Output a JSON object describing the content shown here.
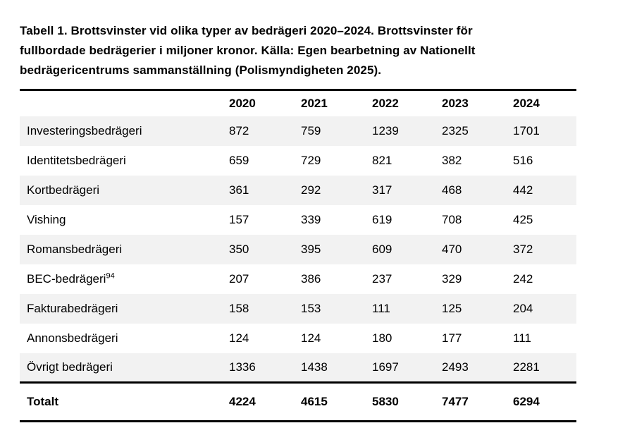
{
  "page": {
    "background_color": "#ffffff",
    "text_color": "#000000",
    "stripe_color": "#f2f2f2",
    "rule_color": "#000000"
  },
  "caption": {
    "lines": [
      "Tabell 1. Brottsvinster vid olika typer av bedrägeri 2020–2024. Brottsvinster för",
      "fullbordade bedrägerier i miljoner kronor. Källa: Egen bearbetning av Nationellt",
      "bedrägericentrums sammanställning (Polismyndigheten 2025)."
    ]
  },
  "table": {
    "year_columns": [
      "2020",
      "2021",
      "2022",
      "2023",
      "2024"
    ],
    "rows": [
      {
        "label": "Investeringsbedrägeri",
        "values": [
          872,
          759,
          1239,
          2325,
          1701
        ]
      },
      {
        "label": "Identitetsbedrägeri",
        "values": [
          659,
          729,
          821,
          382,
          516
        ]
      },
      {
        "label": "Kortbedrägeri",
        "values": [
          361,
          292,
          317,
          468,
          442
        ]
      },
      {
        "label": "Vishing",
        "values": [
          157,
          339,
          619,
          708,
          425
        ]
      },
      {
        "label": "Romansbedrägeri",
        "values": [
          350,
          395,
          609,
          470,
          372
        ]
      },
      {
        "label": "BEC-bedrägeri",
        "footnote": "94",
        "values": [
          207,
          386,
          237,
          329,
          242
        ]
      },
      {
        "label": "Fakturabedrägeri",
        "values": [
          158,
          153,
          111,
          125,
          204
        ]
      },
      {
        "label": "Annonsbedrägeri",
        "values": [
          124,
          124,
          180,
          177,
          111
        ]
      },
      {
        "label": "Övrigt bedrägeri",
        "values": [
          1336,
          1438,
          1697,
          2493,
          2281
        ]
      }
    ],
    "total": {
      "label": "Totalt",
      "values": [
        4224,
        4615,
        5830,
        7477,
        6294
      ]
    }
  },
  "chart_data": {
    "type": "table",
    "title": "Tabell 1. Brottsvinster vid olika typer av bedrägeri 2020–2024",
    "categories": [
      "2020",
      "2021",
      "2022",
      "2023",
      "2024"
    ],
    "series": [
      {
        "name": "Investeringsbedrägeri",
        "values": [
          872,
          759,
          1239,
          2325,
          1701
        ]
      },
      {
        "name": "Identitetsbedrägeri",
        "values": [
          659,
          729,
          821,
          382,
          516
        ]
      },
      {
        "name": "Kortbedrägeri",
        "values": [
          361,
          292,
          317,
          468,
          442
        ]
      },
      {
        "name": "Vishing",
        "values": [
          157,
          339,
          619,
          708,
          425
        ]
      },
      {
        "name": "Romansbedrägeri",
        "values": [
          350,
          395,
          609,
          470,
          372
        ]
      },
      {
        "name": "BEC-bedrägeri",
        "values": [
          207,
          386,
          237,
          329,
          242
        ]
      },
      {
        "name": "Fakturabedrägeri",
        "values": [
          158,
          153,
          111,
          125,
          204
        ]
      },
      {
        "name": "Annonsbedrägeri",
        "values": [
          124,
          124,
          180,
          177,
          111
        ]
      },
      {
        "name": "Övrigt bedrägeri",
        "values": [
          1336,
          1438,
          1697,
          2493,
          2281
        ]
      },
      {
        "name": "Totalt",
        "values": [
          4224,
          4615,
          5830,
          7477,
          6294
        ]
      }
    ]
  }
}
